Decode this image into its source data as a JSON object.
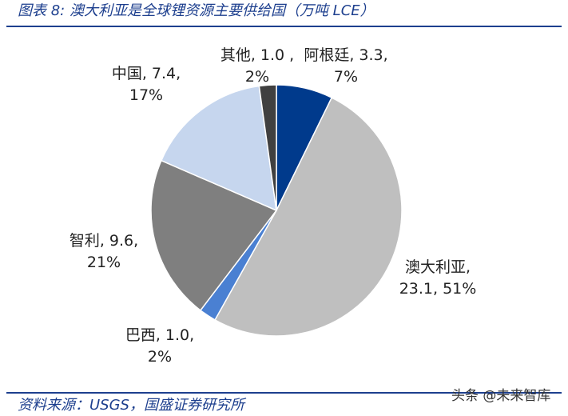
{
  "chart_data": {
    "type": "pie",
    "title": "图表 8:  澳大利亚是全球锂资源主要供给国（万吨 LCE）",
    "categories": [
      "阿根廷,",
      "澳大利亚,",
      "巴西,",
      "智利,",
      "中国,",
      "其他,"
    ],
    "values": [
      3.3,
      23.1,
      1.0,
      9.6,
      7.4,
      1.0
    ],
    "value_labels": [
      "3.3,",
      "23.1,",
      "1.0,",
      "9.6,",
      "7.4,",
      "1.0 ,"
    ],
    "percent_labels": [
      "7%",
      "51%",
      "2%",
      "21%",
      "17%",
      "2%"
    ],
    "colors": [
      "#003a8c",
      "#bfbfbf",
      "#4a80d2",
      "#7f7f7f",
      "#c6d6ee",
      "#404040"
    ],
    "source": "资料来源：USGS，国盛证券研究所",
    "watermark": "头条 @未来智库"
  }
}
